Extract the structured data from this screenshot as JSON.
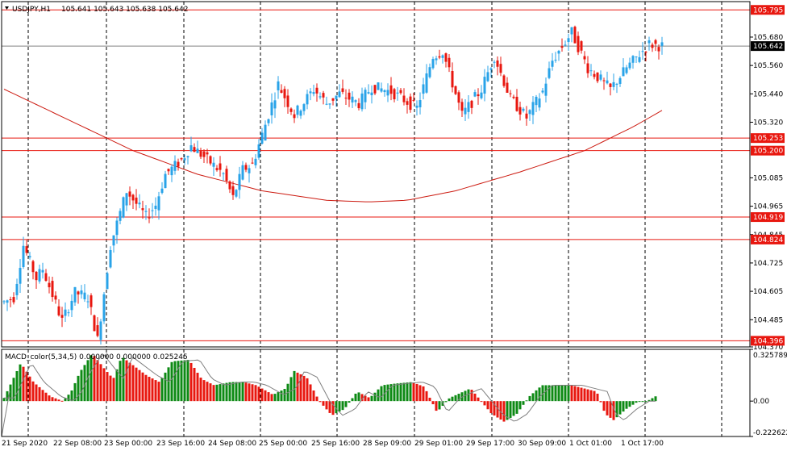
{
  "header": {
    "symbol": "USDJPY,H1",
    "ohlc": "105.641 105.643 105.638 105.642"
  },
  "macd": {
    "label": "MACD_color(5,34,5) 0.000000 0.000000 0.025245"
  },
  "colors": {
    "bull": "#29a3e8",
    "bear": "#e8170f",
    "ma": "#cc1a10",
    "level": "#e8170f",
    "macd_up": "#0d8a14",
    "macd_down": "#e8170f",
    "signal": "#7f7f7f",
    "price_line": "#808080"
  },
  "chart_data": [
    {
      "type": "candlestick",
      "title": "USDJPY,H1",
      "ylim": [
        104.37,
        105.83
      ],
      "y_ticks": [
        {
          "value": 105.68,
          "label": "105.680"
        },
        {
          "value": 105.56,
          "label": "105.560"
        },
        {
          "value": 105.44,
          "label": "105.440"
        },
        {
          "value": 105.32,
          "label": "105.320"
        },
        {
          "value": 105.085,
          "label": "105.085"
        },
        {
          "value": 104.965,
          "label": "104.965"
        },
        {
          "value": 104.845,
          "label": "104.845"
        },
        {
          "value": 104.725,
          "label": "104.725"
        },
        {
          "value": 104.605,
          "label": "104.605"
        },
        {
          "value": 104.485,
          "label": "104.485"
        },
        {
          "value": 104.37,
          "label": "104.370"
        }
      ],
      "x_labels": [
        "21 Sep 2020",
        "22 Sep 08:00",
        "23 Sep 00:00",
        "23 Sep 16:00",
        "24 Sep 08:00",
        "25 Sep 00:00",
        "25 Sep 16:00",
        "28 Sep 09:00",
        "29 Sep 01:00",
        "29 Sep 17:00",
        "30 Sep 09:00",
        "1 Oct 01:00",
        "1 Oct 17:00"
      ],
      "levels": [
        {
          "value": 105.795,
          "label": "105.795"
        },
        {
          "value": 105.253,
          "label": "105.253"
        },
        {
          "value": 105.2,
          "label": "105.200"
        },
        {
          "value": 104.919,
          "label": "104.919"
        },
        {
          "value": 104.824,
          "label": "104.824"
        },
        {
          "value": 104.396,
          "label": "104.396"
        }
      ],
      "current_price": {
        "value": 105.642,
        "label": "105.642"
      },
      "candle_count": 205,
      "anchors": [
        [
          0,
          104.56
        ],
        [
          3,
          104.58
        ],
        [
          6,
          104.8
        ],
        [
          10,
          104.66
        ],
        [
          12,
          104.7
        ],
        [
          18,
          104.48
        ],
        [
          22,
          104.6
        ],
        [
          26,
          104.58
        ],
        [
          29,
          104.4
        ],
        [
          33,
          104.8
        ],
        [
          38,
          105.03
        ],
        [
          44,
          104.92
        ],
        [
          47,
          104.97
        ],
        [
          50,
          105.1
        ],
        [
          55,
          105.16
        ],
        [
          58,
          105.22
        ],
        [
          64,
          105.15
        ],
        [
          68,
          105.1
        ],
        [
          71,
          105.0
        ],
        [
          74,
          105.12
        ],
        [
          77,
          105.14
        ],
        [
          85,
          105.48
        ],
        [
          90,
          105.35
        ],
        [
          96,
          105.46
        ],
        [
          100,
          105.4
        ],
        [
          104,
          105.44
        ],
        [
          110,
          105.4
        ],
        [
          114,
          105.47
        ],
        [
          120,
          105.45
        ],
        [
          128,
          105.38
        ],
        [
          133,
          105.6
        ],
        [
          136,
          105.62
        ],
        [
          142,
          105.35
        ],
        [
          148,
          105.46
        ],
        [
          152,
          105.6
        ],
        [
          157,
          105.42
        ],
        [
          162,
          105.34
        ],
        [
          167,
          105.45
        ],
        [
          170,
          105.58
        ],
        [
          176,
          105.7
        ],
        [
          181,
          105.55
        ],
        [
          188,
          105.46
        ],
        [
          193,
          105.55
        ],
        [
          200,
          105.65
        ],
        [
          204,
          105.642
        ]
      ],
      "moving_average": [
        [
          0,
          105.46
        ],
        [
          20,
          105.33
        ],
        [
          40,
          105.2
        ],
        [
          60,
          105.1
        ],
        [
          80,
          105.03
        ],
        [
          100,
          104.99
        ],
        [
          113,
          104.983
        ],
        [
          125,
          104.99
        ],
        [
          140,
          105.03
        ],
        [
          160,
          105.11
        ],
        [
          180,
          105.2
        ],
        [
          195,
          105.3
        ],
        [
          204,
          105.37
        ]
      ]
    },
    {
      "type": "bar",
      "title": "MACD_color(5,34,5)",
      "ylim": [
        -0.2226,
        0.3258
      ],
      "y_ticks": [
        {
          "value": 0.325789,
          "label": "0.325789"
        },
        {
          "value": 0.0,
          "label": "0.00"
        },
        {
          "value": -0.222622,
          "label": "-0.222622"
        }
      ],
      "anchors": [
        [
          0,
          0.02
        ],
        [
          8,
          0.24
        ],
        [
          14,
          0.12
        ],
        [
          22,
          0.03
        ],
        [
          28,
          0.0
        ],
        [
          32,
          0.06
        ],
        [
          36,
          0.18
        ],
        [
          42,
          0.3
        ],
        [
          48,
          0.2
        ],
        [
          52,
          0.14
        ],
        [
          56,
          0.28
        ],
        [
          62,
          0.22
        ],
        [
          68,
          0.16
        ],
        [
          74,
          0.12
        ],
        [
          80,
          0.25
        ],
        [
          88,
          0.26
        ],
        [
          94,
          0.14
        ],
        [
          100,
          0.1
        ],
        [
          108,
          0.12
        ],
        [
          114,
          0.12
        ],
        [
          120,
          0.1
        ],
        [
          128,
          0.04
        ],
        [
          134,
          0.08
        ],
        [
          138,
          0.19
        ],
        [
          144,
          0.15
        ],
        [
          150,
          0.0
        ],
        [
          156,
          -0.09
        ],
        [
          162,
          -0.05
        ],
        [
          168,
          0.06
        ],
        [
          174,
          0.02
        ],
        [
          180,
          0.1
        ],
        [
          186,
          0.11
        ],
        [
          194,
          0.12
        ],
        [
          200,
          0.09
        ],
        [
          206,
          -0.07
        ],
        [
          212,
          0.02
        ],
        [
          222,
          0.08
        ],
        [
          232,
          -0.08
        ],
        [
          238,
          -0.13
        ],
        [
          244,
          -0.08
        ],
        [
          250,
          0.03
        ],
        [
          256,
          0.1
        ],
        [
          262,
          0.1
        ],
        [
          270,
          0.1
        ],
        [
          276,
          0.08
        ],
        [
          282,
          0.06
        ],
        [
          286,
          -0.08
        ],
        [
          290,
          -0.12
        ],
        [
          296,
          -0.05
        ],
        [
          302,
          0.0
        ],
        [
          306,
          0.0
        ],
        [
          310,
          0.03
        ]
      ]
    }
  ]
}
